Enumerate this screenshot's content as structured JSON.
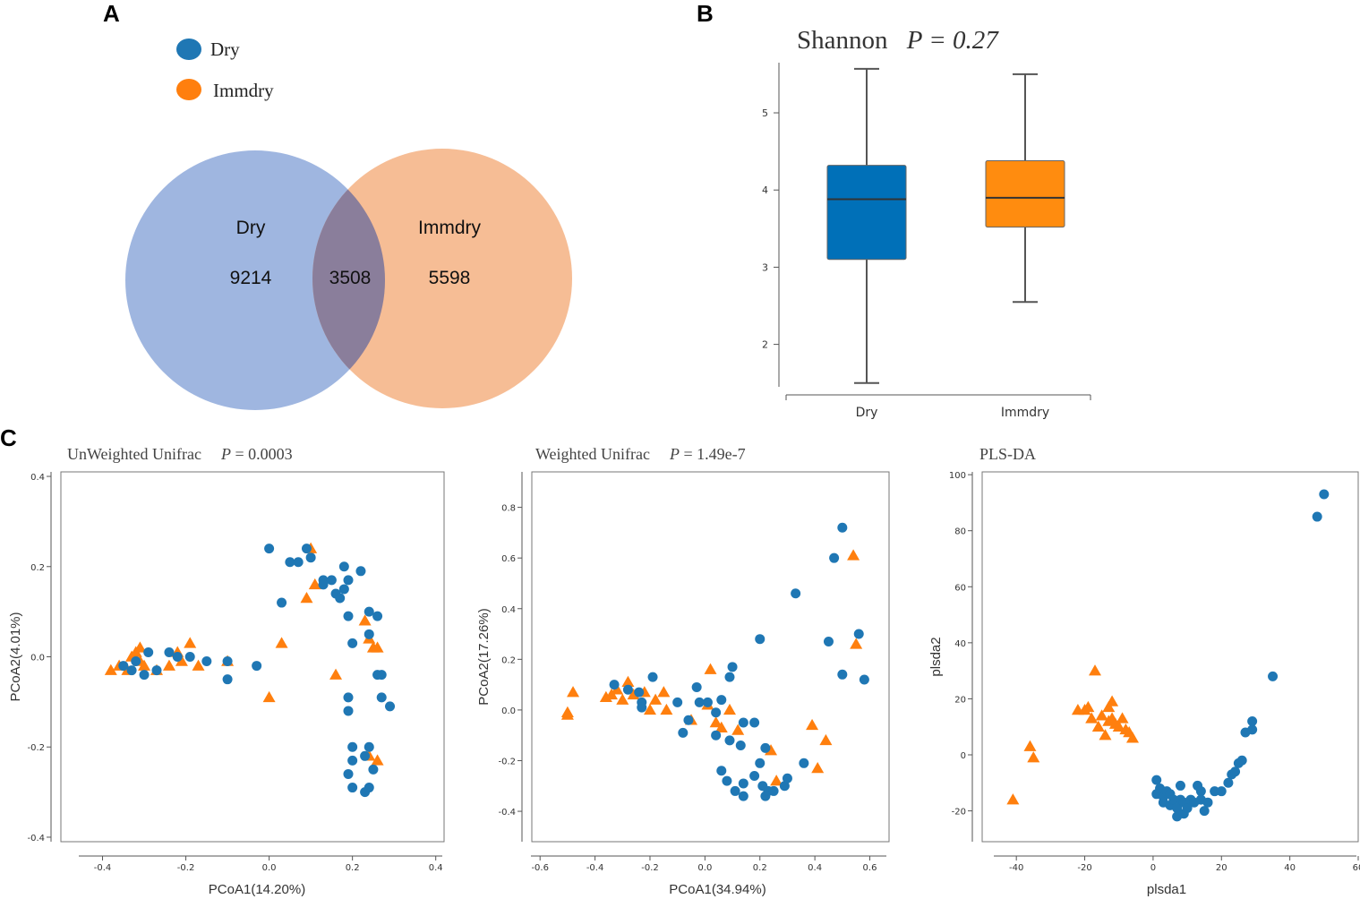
{
  "colors": {
    "dry": "#1f77b4",
    "immdry": "#ff7f0e",
    "venn_dry": "#8ea9db",
    "venn_immdry": "#f4b183",
    "venn_overlap": "#8a7e9b"
  },
  "panels": {
    "a": "A",
    "b": "B",
    "c": "C"
  },
  "venn": {
    "legend": [
      {
        "label": "Dry",
        "color": "#1f77b4"
      },
      {
        "label": "Immdry",
        "color": "#ff7f0e"
      }
    ],
    "sets": [
      {
        "name": "Dry",
        "count": "9214"
      },
      {
        "name": "Immdry",
        "count": "5598"
      }
    ],
    "overlap": "3508"
  },
  "chart_data": [
    {
      "type": "box",
      "title": "Shannon",
      "title_p": "P = 0.27",
      "categories": [
        "Dry",
        "Immdry"
      ],
      "yticks": [
        2,
        3,
        4,
        5
      ],
      "ylim": [
        1.45,
        5.65
      ],
      "boxes": [
        {
          "name": "Dry",
          "min": 1.5,
          "q1": 3.1,
          "median": 3.88,
          "q3": 4.32,
          "max": 5.57,
          "color": "#0070b8"
        },
        {
          "name": "Immdry",
          "min": 2.55,
          "q1": 3.52,
          "median": 3.9,
          "q3": 4.38,
          "max": 5.5,
          "color": "#ff8c0f"
        }
      ]
    },
    {
      "type": "scatter",
      "title": "UnWeighted Unifrac",
      "title_p": "P = 0.0003",
      "xlabel": "PCoA1(14.20%)",
      "ylabel": "PCoA2(4.01%)",
      "xlim": [
        -0.5,
        0.42
      ],
      "ylim": [
        -0.41,
        0.41
      ],
      "xticks": [
        -0.4,
        -0.2,
        0.0,
        0.2,
        0.4
      ],
      "xtick_labels": [
        "-0.4",
        "-0.2",
        "0.0",
        "0.2",
        "0.4"
      ],
      "yticks": [
        -0.4,
        -0.2,
        0.0,
        0.2,
        0.4
      ],
      "ytick_labels": [
        "-0.4",
        "-0.2",
        "0.0",
        "0.2",
        "0.4"
      ],
      "series": [
        {
          "name": "Dry",
          "marker": "circle",
          "points": [
            [
              -0.35,
              -0.02
            ],
            [
              -0.33,
              -0.03
            ],
            [
              -0.32,
              -0.01
            ],
            [
              -0.3,
              -0.04
            ],
            [
              -0.29,
              0.01
            ],
            [
              -0.27,
              -0.03
            ],
            [
              -0.24,
              0.01
            ],
            [
              -0.22,
              0.0
            ],
            [
              -0.19,
              0.0
            ],
            [
              -0.15,
              -0.01
            ],
            [
              -0.1,
              -0.01
            ],
            [
              -0.1,
              -0.05
            ],
            [
              -0.03,
              -0.02
            ],
            [
              0.0,
              0.24
            ],
            [
              0.03,
              0.12
            ],
            [
              0.05,
              0.21
            ],
            [
              0.07,
              0.21
            ],
            [
              0.09,
              0.24
            ],
            [
              0.1,
              0.22
            ],
            [
              0.13,
              0.17
            ],
            [
              0.13,
              0.16
            ],
            [
              0.15,
              0.17
            ],
            [
              0.16,
              0.14
            ],
            [
              0.17,
              0.13
            ],
            [
              0.18,
              0.15
            ],
            [
              0.18,
              0.2
            ],
            [
              0.19,
              0.17
            ],
            [
              0.19,
              0.09
            ],
            [
              0.2,
              0.03
            ],
            [
              0.22,
              0.19
            ],
            [
              0.24,
              0.1
            ],
            [
              0.24,
              0.05
            ],
            [
              0.26,
              0.09
            ],
            [
              0.26,
              -0.04
            ],
            [
              0.27,
              -0.04
            ],
            [
              0.27,
              -0.09
            ],
            [
              0.29,
              -0.11
            ],
            [
              0.19,
              -0.09
            ],
            [
              0.19,
              -0.12
            ],
            [
              0.2,
              -0.2
            ],
            [
              0.23,
              -0.22
            ],
            [
              0.24,
              -0.2
            ],
            [
              0.25,
              -0.25
            ],
            [
              0.19,
              -0.26
            ],
            [
              0.2,
              -0.23
            ],
            [
              0.2,
              -0.29
            ],
            [
              0.23,
              -0.3
            ],
            [
              0.24,
              -0.29
            ]
          ]
        },
        {
          "name": "Immdry",
          "marker": "triangle",
          "points": [
            [
              -0.38,
              -0.03
            ],
            [
              -0.36,
              -0.02
            ],
            [
              -0.34,
              -0.03
            ],
            [
              -0.33,
              0.0
            ],
            [
              -0.32,
              0.01
            ],
            [
              -0.31,
              0.02
            ],
            [
              -0.31,
              -0.01
            ],
            [
              -0.3,
              -0.02
            ],
            [
              -0.27,
              -0.03
            ],
            [
              -0.24,
              -0.02
            ],
            [
              -0.22,
              0.01
            ],
            [
              -0.21,
              -0.01
            ],
            [
              -0.19,
              0.03
            ],
            [
              -0.17,
              -0.02
            ],
            [
              -0.1,
              -0.01
            ],
            [
              0.0,
              -0.09
            ],
            [
              0.03,
              0.03
            ],
            [
              0.09,
              0.13
            ],
            [
              0.1,
              0.24
            ],
            [
              0.11,
              0.16
            ],
            [
              0.16,
              -0.04
            ],
            [
              0.23,
              0.08
            ],
            [
              0.24,
              0.04
            ],
            [
              0.25,
              0.02
            ],
            [
              0.24,
              -0.22
            ],
            [
              0.26,
              -0.23
            ],
            [
              0.26,
              0.02
            ]
          ]
        }
      ]
    },
    {
      "type": "scatter",
      "title": "Weighted Unifrac",
      "title_p": "P = 1.49e-7",
      "xlabel": "PCoA1(34.94%)",
      "ylabel": "PCoA2(17.26%)",
      "xlim": [
        -0.63,
        0.67
      ],
      "ylim": [
        -0.52,
        0.94
      ],
      "xticks": [
        -0.6,
        -0.4,
        -0.2,
        0.0,
        0.2,
        0.4,
        0.6
      ],
      "xtick_labels": [
        "-0.6",
        "-0.4",
        "-0.2",
        "0.0",
        "0.2",
        "0.4",
        "0.6"
      ],
      "yticks": [
        -0.4,
        -0.2,
        0.0,
        0.2,
        0.4,
        0.6,
        0.8
      ],
      "ytick_labels": [
        "-0.4",
        "-0.2",
        "0.0",
        "0.2",
        "0.4",
        "0.6",
        "0.8"
      ],
      "series": [
        {
          "name": "Dry",
          "marker": "circle",
          "points": [
            [
              -0.33,
              0.1
            ],
            [
              -0.28,
              0.08
            ],
            [
              -0.24,
              0.07
            ],
            [
              -0.23,
              0.03
            ],
            [
              -0.23,
              0.01
            ],
            [
              -0.19,
              0.13
            ],
            [
              -0.1,
              0.03
            ],
            [
              -0.08,
              -0.09
            ],
            [
              -0.06,
              -0.04
            ],
            [
              -0.03,
              0.09
            ],
            [
              -0.02,
              0.03
            ],
            [
              0.01,
              0.03
            ],
            [
              0.04,
              -0.01
            ],
            [
              0.04,
              -0.1
            ],
            [
              0.06,
              0.04
            ],
            [
              0.06,
              -0.24
            ],
            [
              0.08,
              -0.28
            ],
            [
              0.09,
              0.13
            ],
            [
              0.09,
              -0.12
            ],
            [
              0.1,
              0.17
            ],
            [
              0.11,
              -0.32
            ],
            [
              0.13,
              -0.14
            ],
            [
              0.14,
              -0.05
            ],
            [
              0.14,
              -0.29
            ],
            [
              0.14,
              -0.34
            ],
            [
              0.18,
              -0.05
            ],
            [
              0.18,
              -0.26
            ],
            [
              0.2,
              -0.21
            ],
            [
              0.2,
              0.28
            ],
            [
              0.21,
              -0.3
            ],
            [
              0.22,
              -0.34
            ],
            [
              0.22,
              -0.15
            ],
            [
              0.23,
              -0.32
            ],
            [
              0.25,
              -0.32
            ],
            [
              0.29,
              -0.3
            ],
            [
              0.3,
              -0.27
            ],
            [
              0.33,
              0.46
            ],
            [
              0.36,
              -0.21
            ],
            [
              0.45,
              0.27
            ],
            [
              0.47,
              0.6
            ],
            [
              0.5,
              0.72
            ],
            [
              0.5,
              0.14
            ],
            [
              0.56,
              0.3
            ],
            [
              0.58,
              0.12
            ]
          ]
        },
        {
          "name": "Immdry",
          "marker": "triangle",
          "points": [
            [
              -0.5,
              -0.01
            ],
            [
              -0.5,
              -0.02
            ],
            [
              -0.48,
              0.07
            ],
            [
              -0.36,
              0.05
            ],
            [
              -0.34,
              0.06
            ],
            [
              -0.32,
              0.08
            ],
            [
              -0.3,
              0.04
            ],
            [
              -0.28,
              0.11
            ],
            [
              -0.26,
              0.06
            ],
            [
              -0.22,
              0.07
            ],
            [
              -0.2,
              0.0
            ],
            [
              -0.18,
              0.04
            ],
            [
              -0.15,
              0.07
            ],
            [
              -0.14,
              0.0
            ],
            [
              -0.05,
              -0.04
            ],
            [
              0.01,
              0.02
            ],
            [
              0.02,
              0.16
            ],
            [
              0.04,
              -0.05
            ],
            [
              0.06,
              -0.07
            ],
            [
              0.09,
              0.0
            ],
            [
              0.12,
              -0.08
            ],
            [
              0.24,
              -0.16
            ],
            [
              0.26,
              -0.28
            ],
            [
              0.39,
              -0.06
            ],
            [
              0.41,
              -0.23
            ],
            [
              0.44,
              -0.12
            ],
            [
              0.54,
              0.61
            ],
            [
              0.55,
              0.26
            ]
          ]
        }
      ]
    },
    {
      "type": "scatter",
      "title": "PLS-DA",
      "title_p": "",
      "xlabel": "plsda1",
      "ylabel": "plsda2",
      "xlim": [
        -50,
        60
      ],
      "ylim": [
        -31,
        101
      ],
      "xticks": [
        -40,
        -20,
        0,
        20,
        40,
        60
      ],
      "xtick_labels": [
        "-40",
        "-20",
        "0",
        "20",
        "40",
        "60"
      ],
      "yticks": [
        -20,
        0,
        20,
        40,
        60,
        80,
        100
      ],
      "ytick_labels": [
        "-20",
        "0",
        "20",
        "40",
        "60",
        "80",
        "100"
      ],
      "series": [
        {
          "name": "Dry",
          "marker": "circle",
          "points": [
            [
              1,
              -9
            ],
            [
              1,
              -14
            ],
            [
              2,
              -12
            ],
            [
              3,
              -15
            ],
            [
              3,
              -17
            ],
            [
              4,
              -13
            ],
            [
              5,
              -14
            ],
            [
              5,
              -18
            ],
            [
              6,
              -16
            ],
            [
              7,
              -19
            ],
            [
              7,
              -22
            ],
            [
              8,
              -16
            ],
            [
              8,
              -11
            ],
            [
              9,
              -17
            ],
            [
              9,
              -21
            ],
            [
              10,
              -19
            ],
            [
              11,
              -16
            ],
            [
              12,
              -17
            ],
            [
              13,
              -11
            ],
            [
              14,
              -13
            ],
            [
              14,
              -16
            ],
            [
              15,
              -20
            ],
            [
              16,
              -17
            ],
            [
              18,
              -13
            ],
            [
              20,
              -13
            ],
            [
              22,
              -10
            ],
            [
              23,
              -7
            ],
            [
              24,
              -6
            ],
            [
              25,
              -3
            ],
            [
              26,
              -2
            ],
            [
              27,
              8
            ],
            [
              29,
              9
            ],
            [
              29,
              12
            ],
            [
              35,
              28
            ],
            [
              48,
              85
            ],
            [
              50,
              93
            ]
          ]
        },
        {
          "name": "Immdry",
          "marker": "triangle",
          "points": [
            [
              -41,
              -16
            ],
            [
              -36,
              3
            ],
            [
              -35,
              -1
            ],
            [
              -22,
              16
            ],
            [
              -20,
              16
            ],
            [
              -19,
              17
            ],
            [
              -18,
              13
            ],
            [
              -17,
              30
            ],
            [
              -16,
              10
            ],
            [
              -15,
              14
            ],
            [
              -14,
              7
            ],
            [
              -13,
              12
            ],
            [
              -13,
              17
            ],
            [
              -12,
              19
            ],
            [
              -12,
              13
            ],
            [
              -11,
              11
            ],
            [
              -10,
              10
            ],
            [
              -9,
              13
            ],
            [
              -8,
              9
            ],
            [
              -7,
              8
            ],
            [
              -6,
              6
            ]
          ]
        }
      ]
    }
  ]
}
